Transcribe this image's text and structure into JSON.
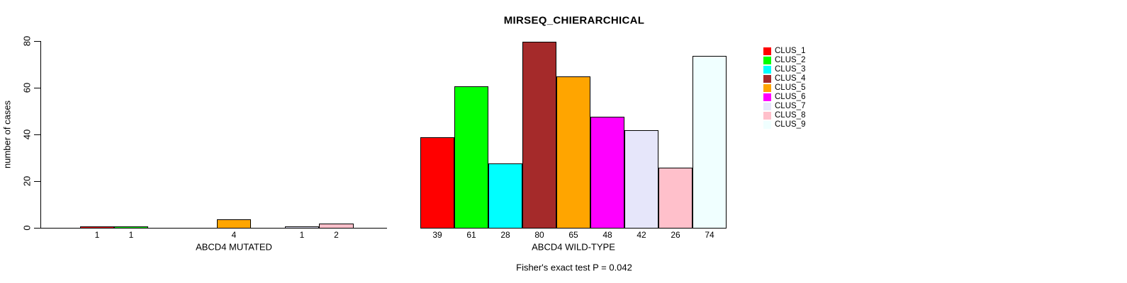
{
  "chart_data": {
    "type": "bar",
    "title": "MIRSEQ_CHIERARCHICAL",
    "ylabel": "number of cases",
    "ylim": [
      0,
      80
    ],
    "yticks": [
      0,
      20,
      40,
      60,
      80
    ],
    "grid": false,
    "legend_position": "right",
    "footnote": "Fisher's exact test P = 0.042",
    "clusters": [
      {
        "name": "CLUS_1",
        "color": "#FF0000"
      },
      {
        "name": "CLUS_2",
        "color": "#00FF00"
      },
      {
        "name": "CLUS_3",
        "color": "#00FFFF"
      },
      {
        "name": "CLUS_4",
        "color": "#A52A2A"
      },
      {
        "name": "CLUS_5",
        "color": "#FFA500"
      },
      {
        "name": "CLUS_6",
        "color": "#FF00FF"
      },
      {
        "name": "CLUS_7",
        "color": "#E6E6FA"
      },
      {
        "name": "CLUS_8",
        "color": "#FFC0CB"
      },
      {
        "name": "CLUS_9",
        "color": "#F0FFFF"
      }
    ],
    "series": [
      {
        "name": "ABCD4 MUTATED",
        "values": [
          1,
          1,
          0,
          0,
          4,
          0,
          1,
          2,
          0
        ]
      },
      {
        "name": "ABCD4 WILD-TYPE",
        "values": [
          39,
          61,
          28,
          80,
          65,
          48,
          42,
          26,
          74
        ]
      }
    ],
    "hidden_zero_bars": true
  }
}
